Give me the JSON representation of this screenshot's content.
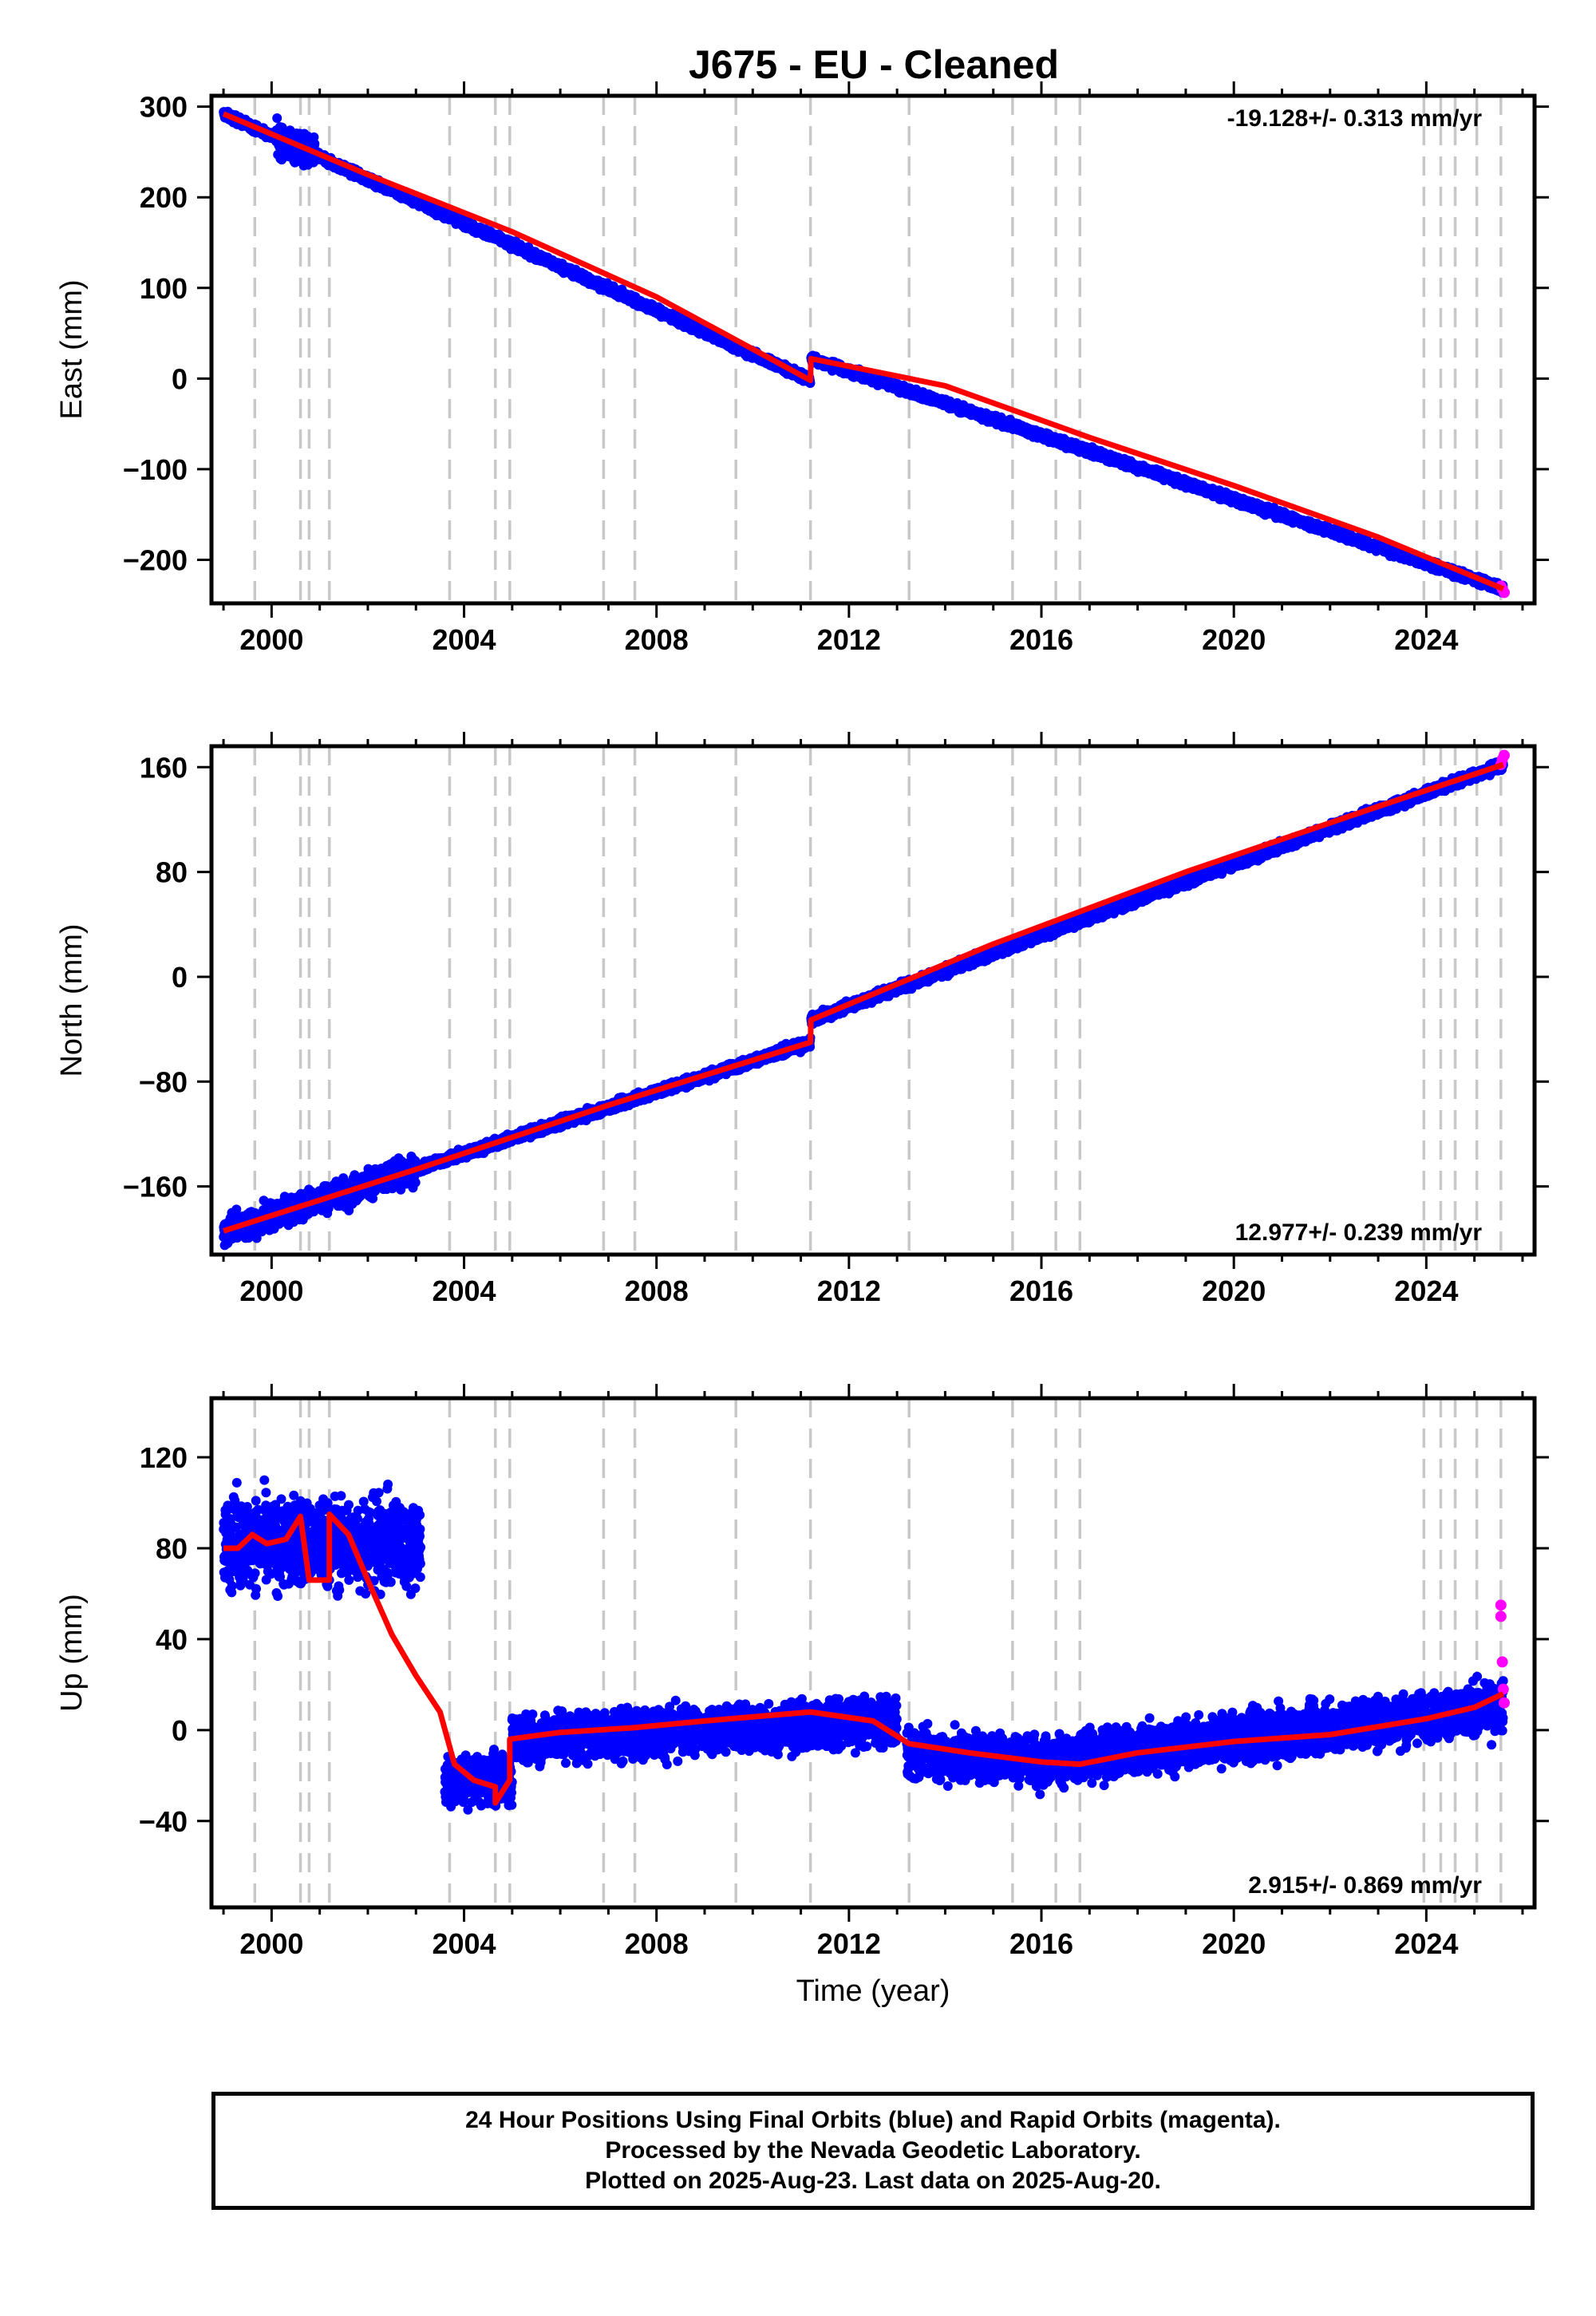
{
  "chart_data": {
    "title": "J675  - EU - Cleaned",
    "type": "scatter",
    "x_ticks": [
      "2000",
      "2004",
      "2008",
      "2012",
      "2016",
      "2020",
      "2024"
    ],
    "xlim": [
      1998.75,
      2026.25
    ],
    "xlabel": "Time (year)",
    "equipment_change_epochs": [
      1999.65,
      2000.6,
      2000.78,
      2001.2,
      2003.7,
      2004.65,
      2004.95,
      2006.9,
      2007.55,
      2009.65,
      2011.2,
      2013.25,
      2015.4,
      2016.3,
      2016.8,
      2023.95,
      2024.3,
      2024.6,
      2025.05,
      2025.55
    ],
    "panels": [
      {
        "name": "East",
        "ylabel": "East (mm)",
        "ylim": [
          -248,
          312
        ],
        "y_ticks": [
          {
            "v": 300,
            "label": "300"
          },
          {
            "v": 200,
            "label": "200"
          },
          {
            "v": 100,
            "label": "100"
          },
          {
            "v": 0,
            "label": "0"
          },
          {
            "v": -100,
            "label": "−100"
          },
          {
            "v": -200,
            "label": "−200"
          }
        ],
        "rate_label": "-19.128+/- 0.313 mm/yr",
        "rate_position": "top-right",
        "series": [
          {
            "name": "Final Orbits",
            "style": "points",
            "color": "#0000ff",
            "model_segments": [
              [
                [
                  1999.0,
                  292
                ],
                [
                  2011.2,
                  -2
                ]
              ],
              [
                [
                  2011.21,
                  22
                ],
                [
                  2025.6,
                  -232
                ]
              ]
            ],
            "spread_mm": 5,
            "early_spread": [
              2000.1,
              2000.9,
              20
            ]
          },
          {
            "name": "Rapid Orbits",
            "style": "points",
            "color": "#ff00ff",
            "points": [
              [
                2025.55,
                -229
              ],
              [
                2025.58,
                -232
              ],
              [
                2025.62,
                -236
              ]
            ]
          },
          {
            "name": "Model",
            "style": "line",
            "color": "#ff0000",
            "points": [
              [
                1999.0,
                292
              ],
              [
                2002.0,
                225
              ],
              [
                2005.0,
                162
              ],
              [
                2008.0,
                90
              ],
              [
                2011.2,
                -2
              ],
              [
                2011.21,
                22
              ],
              [
                2014.0,
                -8
              ],
              [
                2017.0,
                -65
              ],
              [
                2020.0,
                -118
              ],
              [
                2023.0,
                -175
              ],
              [
                2025.6,
                -232
              ]
            ]
          }
        ]
      },
      {
        "name": "North",
        "ylabel": "North (mm)",
        "ylim": [
          -212,
          176
        ],
        "y_ticks": [
          {
            "v": 160,
            "label": "160"
          },
          {
            "v": 80,
            "label": "80"
          },
          {
            "v": 0,
            "label": "0"
          },
          {
            "v": -80,
            "label": "−80"
          },
          {
            "v": -160,
            "label": "−160"
          }
        ],
        "rate_label": "12.977+/- 0.239 mm/yr",
        "rate_position": "bottom-right",
        "series": [
          {
            "name": "Final Orbits",
            "style": "points",
            "color": "#0000ff",
            "model_segments": [
              [
                [
                  1999.0,
                  -194
                ],
                [
                  2011.2,
                  -50
                ]
              ],
              [
                [
                  2011.21,
                  -33
                ],
                [
                  2025.6,
                  162
                ]
              ]
            ],
            "spread_mm": 4,
            "early_spread": [
              1999.0,
              2003.0,
              12
            ]
          },
          {
            "name": "Rapid Orbits",
            "style": "points",
            "color": "#ff00ff",
            "points": [
              [
                2025.55,
                162
              ],
              [
                2025.58,
                166
              ],
              [
                2025.62,
                169
              ]
            ]
          },
          {
            "name": "Model",
            "style": "line",
            "color": "#ff0000",
            "points": [
              [
                1999.0,
                -194
              ],
              [
                2003.0,
                -147
              ],
              [
                2007.0,
                -98
              ],
              [
                2011.2,
                -50
              ],
              [
                2011.21,
                -33
              ],
              [
                2015.0,
                25
              ],
              [
                2019.0,
                80
              ],
              [
                2023.0,
                130
              ],
              [
                2025.6,
                162
              ]
            ]
          }
        ]
      },
      {
        "name": "Up",
        "ylabel": "Up (mm)",
        "ylim": [
          -78,
          146
        ],
        "y_ticks": [
          {
            "v": 120,
            "label": "120"
          },
          {
            "v": 80,
            "label": "80"
          },
          {
            "v": 40,
            "label": "40"
          },
          {
            "v": 0,
            "label": "0"
          },
          {
            "v": -40,
            "label": "−40"
          }
        ],
        "rate_label": "2.915+/- 0.869 mm/yr",
        "rate_position": "bottom-right",
        "series": [
          {
            "name": "Final Orbits",
            "style": "points",
            "color": "#0000ff",
            "model_segments": [
              [
                [
                  1999.0,
                  82
                ],
                [
                  2003.1,
                  82
                ]
              ],
              [
                [
                  2003.6,
                  -22
                ],
                [
                  2005.0,
                  -22
                ]
              ],
              [
                [
                  2005.0,
                  -4
                ],
                [
                  2013.0,
                  4
                ]
              ],
              [
                [
                  2013.2,
                  -10
                ],
                [
                  2016.8,
                  -14
                ]
              ],
              [
                [
                  2016.8,
                  -12
                ],
                [
                  2025.6,
                  10
                ]
              ]
            ],
            "gaps": [
              [
                2003.1,
                2003.6
              ]
            ],
            "spread_mm": 12,
            "early_spread": [
              1999.0,
              2003.1,
              22
            ]
          },
          {
            "name": "Rapid Orbits",
            "style": "points",
            "color": "#ff00ff",
            "points": [
              [
                2025.55,
                55
              ],
              [
                2025.55,
                50
              ],
              [
                2025.58,
                30
              ],
              [
                2025.6,
                18
              ],
              [
                2025.62,
                12
              ]
            ]
          },
          {
            "name": "Model",
            "style": "line",
            "color": "#ff0000",
            "points": [
              [
                1999.0,
                80
              ],
              [
                1999.3,
                80
              ],
              [
                1999.6,
                86
              ],
              [
                1999.9,
                82
              ],
              [
                2000.3,
                84
              ],
              [
                2000.6,
                94
              ],
              [
                2000.78,
                66
              ],
              [
                2001.2,
                66
              ],
              [
                2001.2,
                95
              ],
              [
                2001.6,
                86
              ],
              [
                2002.0,
                66
              ],
              [
                2002.5,
                42
              ],
              [
                2003.0,
                24
              ],
              [
                2003.5,
                8
              ],
              [
                2003.8,
                -15
              ],
              [
                2004.2,
                -22
              ],
              [
                2004.65,
                -25
              ],
              [
                2004.65,
                -32
              ],
              [
                2004.95,
                -22
              ],
              [
                2004.95,
                -4
              ],
              [
                2006.0,
                -1
              ],
              [
                2007.5,
                1
              ],
              [
                2009.0,
                4
              ],
              [
                2011.2,
                8
              ],
              [
                2012.5,
                4
              ],
              [
                2013.25,
                -6
              ],
              [
                2014.5,
                -10
              ],
              [
                2016.0,
                -14
              ],
              [
                2016.8,
                -15
              ],
              [
                2018.0,
                -10
              ],
              [
                2020.0,
                -5
              ],
              [
                2022.0,
                -2
              ],
              [
                2024.0,
                5
              ],
              [
                2025.0,
                10
              ],
              [
                2025.6,
                16
              ]
            ]
          }
        ]
      }
    ]
  },
  "footer": {
    "line1": "24 Hour Positions Using Final Orbits (blue) and Rapid Orbits (magenta).",
    "line2": "Processed by the Nevada Geodetic Laboratory.",
    "line3": "Plotted on 2025-Aug-23. Last data on 2025-Aug-20."
  }
}
